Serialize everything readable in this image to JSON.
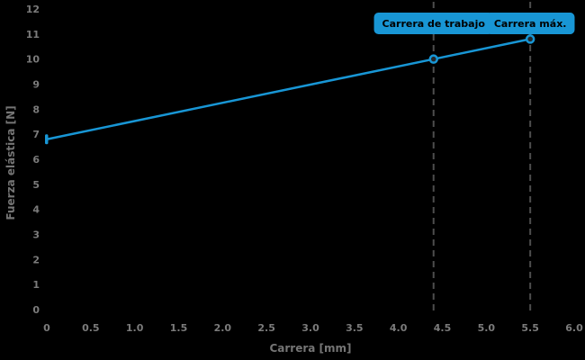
{
  "colors": {
    "background": "#000000",
    "accent": "#1896d5",
    "tick_label": "#7b7b7b",
    "axis_title": "#757575",
    "dashed_line": "#4d4d4d",
    "marker_fill": "#26282a",
    "badge_text": "#000000"
  },
  "chart_data": {
    "type": "line",
    "title": "",
    "xlabel": "Carrera [mm]",
    "ylabel": "Fuerza elástica [N]",
    "xlim": [
      0,
      6
    ],
    "ylim": [
      0,
      12
    ],
    "grid": false,
    "legend": "none",
    "x_tick_labels": [
      "0",
      "0.5",
      "1.0",
      "1.5",
      "2.0",
      "2.5",
      "3.0",
      "3.5",
      "4.0",
      "4.5",
      "5.0",
      "5.5",
      "6.0"
    ],
    "y_tick_labels": [
      "0",
      "1",
      "2",
      "3",
      "4",
      "5",
      "6",
      "7",
      "8",
      "9",
      "10",
      "11",
      "12"
    ],
    "series": [
      {
        "x": [
          0,
          4.4,
          5.5
        ],
        "y": [
          6.8,
          10.0,
          10.8
        ]
      }
    ],
    "annotations": [
      {
        "label": "Carrera de trabajo",
        "x": 4.4
      },
      {
        "label": "Carrera máx.",
        "x": 5.5
      }
    ]
  }
}
